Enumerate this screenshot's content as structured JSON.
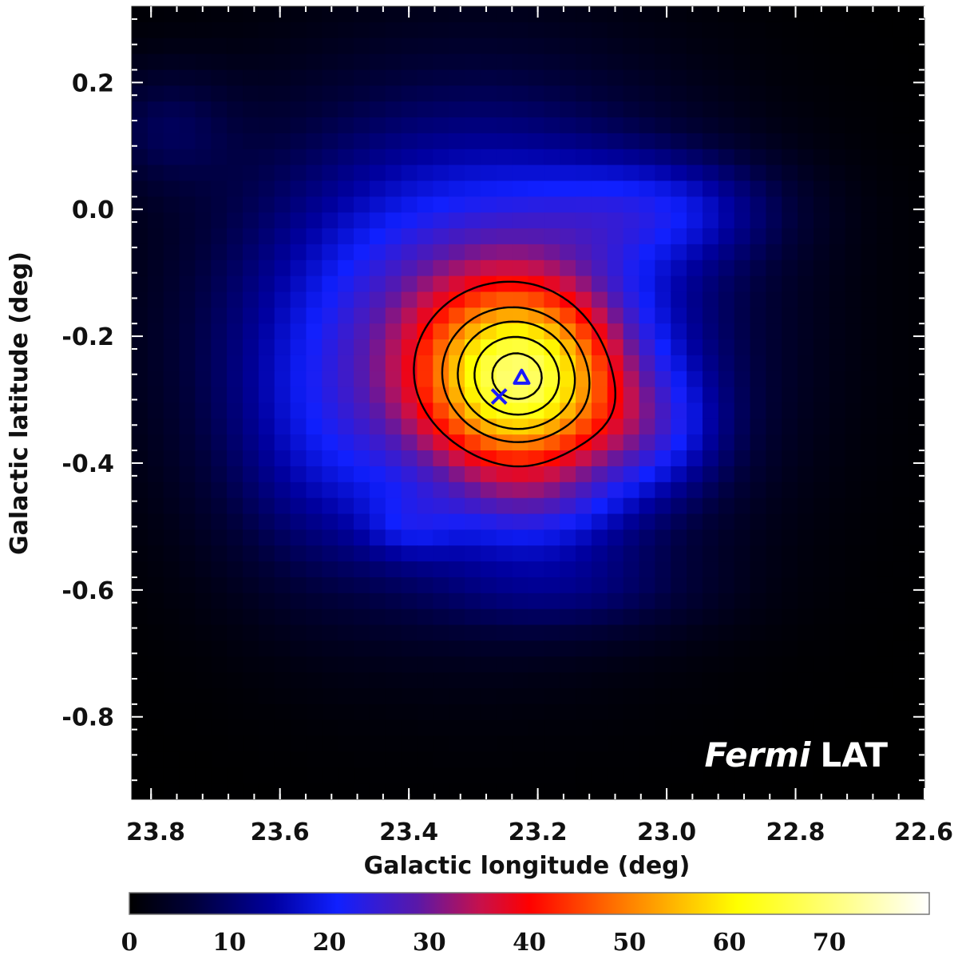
{
  "chart_data": {
    "type": "heatmap",
    "title": "",
    "xlabel": "Galactic longitude (deg)",
    "ylabel": "Galactic latitude (deg)",
    "xlim": [
      23.83,
      22.6
    ],
    "ylim": [
      -0.93,
      0.32
    ],
    "x_ticks": [
      23.8,
      23.6,
      23.4,
      23.2,
      23.0,
      22.8,
      22.6
    ],
    "x_tick_labels": [
      "23.8",
      "23.6",
      "23.4",
      "23.2",
      "23.0",
      "22.8",
      "22.6"
    ],
    "y_ticks": [
      0.2,
      0.0,
      -0.2,
      -0.4,
      -0.6,
      -0.8
    ],
    "y_tick_labels": [
      "0.2",
      "0.0",
      "-0.2",
      "-0.4",
      "-0.6",
      "-0.8"
    ],
    "annotation": {
      "italic": "Fermi",
      "normal": "LAT"
    },
    "colorbar": {
      "range": [
        0,
        80
      ],
      "ticks": [
        0,
        10,
        20,
        30,
        40,
        50,
        60,
        70
      ],
      "tick_labels": [
        "0",
        "10",
        "20",
        "30",
        "40",
        "50",
        "60",
        "70"
      ],
      "stops": [
        [
          0,
          "#000000"
        ],
        [
          0.08,
          "#00003a"
        ],
        [
          0.18,
          "#0000a0"
        ],
        [
          0.26,
          "#1020ff"
        ],
        [
          0.36,
          "#5a18a8"
        ],
        [
          0.44,
          "#c8104a"
        ],
        [
          0.5,
          "#ff0000"
        ],
        [
          0.6,
          "#ff6a00"
        ],
        [
          0.7,
          "#ffc800"
        ],
        [
          0.76,
          "#ffff00"
        ],
        [
          0.9,
          "#ffff90"
        ],
        [
          1.0,
          "#ffffff"
        ]
      ]
    },
    "components": [
      {
        "l": 23.225,
        "b": -0.27,
        "sl": 0.105,
        "sb": 0.1,
        "amp": 42
      },
      {
        "l": 23.02,
        "b": -0.35,
        "sl": 0.08,
        "sb": 0.07,
        "amp": 10
      },
      {
        "l": 23.2,
        "b": -0.47,
        "sl": 0.1,
        "sb": 0.05,
        "amp": 7
      },
      {
        "l": 23.3,
        "b": -0.2,
        "sl": 0.25,
        "sb": 0.24,
        "amp": 30
      },
      {
        "l": 23.0,
        "b": 0.0,
        "sl": 0.13,
        "sb": 0.06,
        "amp": 11
      },
      {
        "l": 23.15,
        "b": -0.6,
        "sl": 0.15,
        "sb": 0.05,
        "amp": 6
      },
      {
        "l": 23.4,
        "b": -0.5,
        "sl": 0.05,
        "sb": 0.035,
        "amp": 6
      },
      {
        "l": 23.78,
        "b": 0.13,
        "sl": 0.08,
        "sb": 0.07,
        "amp": 7
      },
      {
        "l": 23.55,
        "b": -0.38,
        "sl": 0.1,
        "sb": 0.15,
        "amp": 5
      }
    ],
    "contour_levels": [
      40,
      50,
      56,
      62,
      67,
      72
    ],
    "markers": [
      {
        "shape": "cross",
        "l": 23.26,
        "b": -0.295,
        "color": "#1a1aff"
      },
      {
        "shape": "triangle",
        "l": 23.225,
        "b": -0.265,
        "color": "#1a1aff"
      }
    ]
  }
}
